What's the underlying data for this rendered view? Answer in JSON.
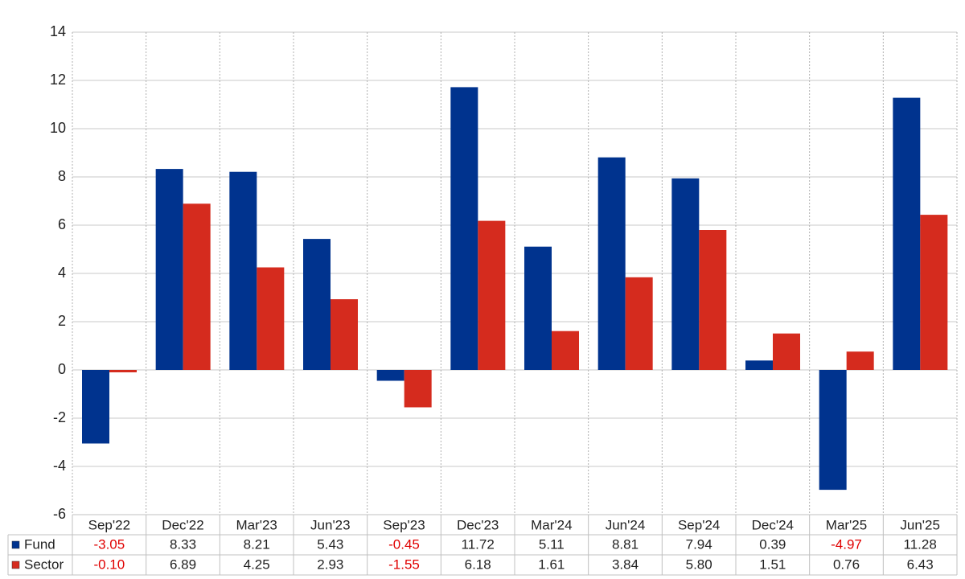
{
  "chart_data": {
    "type": "bar",
    "categories": [
      "Sep'22",
      "Dec'22",
      "Mar'23",
      "Jun'23",
      "Sep'23",
      "Dec'23",
      "Mar'24",
      "Jun'24",
      "Sep'24",
      "Dec'24",
      "Mar'25",
      "Jun'25"
    ],
    "series": [
      {
        "name": "Fund",
        "color": "#00338e",
        "values": [
          -3.05,
          8.33,
          8.21,
          5.43,
          -0.45,
          11.72,
          5.11,
          8.81,
          7.94,
          0.39,
          -4.97,
          11.28
        ],
        "value_labels": [
          "-3.05",
          "8.33",
          "8.21",
          "5.43",
          "-0.45",
          "11.72",
          "5.11",
          "8.81",
          "7.94",
          "0.39",
          "-4.97",
          "11.28"
        ]
      },
      {
        "name": "Sector",
        "color": "#d52b1e",
        "values": [
          -0.1,
          6.89,
          4.25,
          2.93,
          -1.55,
          6.18,
          1.61,
          3.84,
          5.8,
          1.51,
          0.76,
          6.43
        ],
        "value_labels": [
          "-0.10",
          "6.89",
          "4.25",
          "2.93",
          "-1.55",
          "6.18",
          "1.61",
          "3.84",
          "5.80",
          "1.51",
          "0.76",
          "6.43"
        ]
      }
    ],
    "ylim": [
      -6,
      14
    ],
    "yticks": [
      -6,
      -4,
      -2,
      0,
      2,
      4,
      6,
      8,
      10,
      12,
      14
    ],
    "grid": true
  }
}
